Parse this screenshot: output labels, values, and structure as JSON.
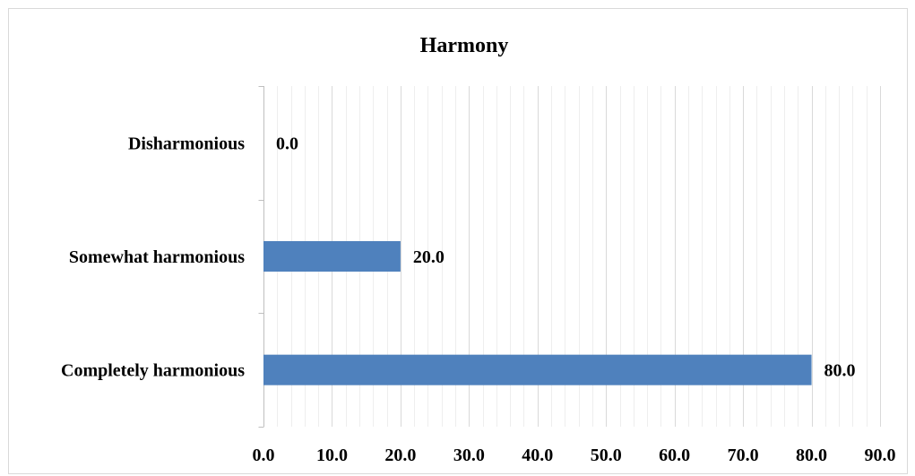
{
  "chart_data": {
    "type": "bar",
    "orientation": "horizontal",
    "title": "Harmony",
    "categories": [
      "Disharmonious",
      "Somewhat harmonious",
      "Completely harmonious"
    ],
    "values": [
      0.0,
      20.0,
      80.0
    ],
    "value_labels": [
      "0.0",
      "20.0",
      "80.0"
    ],
    "xlim": [
      0,
      90
    ],
    "major_ticks": [
      "0.0",
      "10.0",
      "20.0",
      "30.0",
      "40.0",
      "50.0",
      "60.0",
      "70.0",
      "80.0",
      "90.0"
    ],
    "major_step": 10,
    "minor_step": 2,
    "grid": true,
    "legend": false,
    "bar_color": "#4f81bd",
    "major_grid_color": "#d9d9d9",
    "minor_grid_color": "#eeeeee",
    "axis_color": "#bfbfbf"
  }
}
